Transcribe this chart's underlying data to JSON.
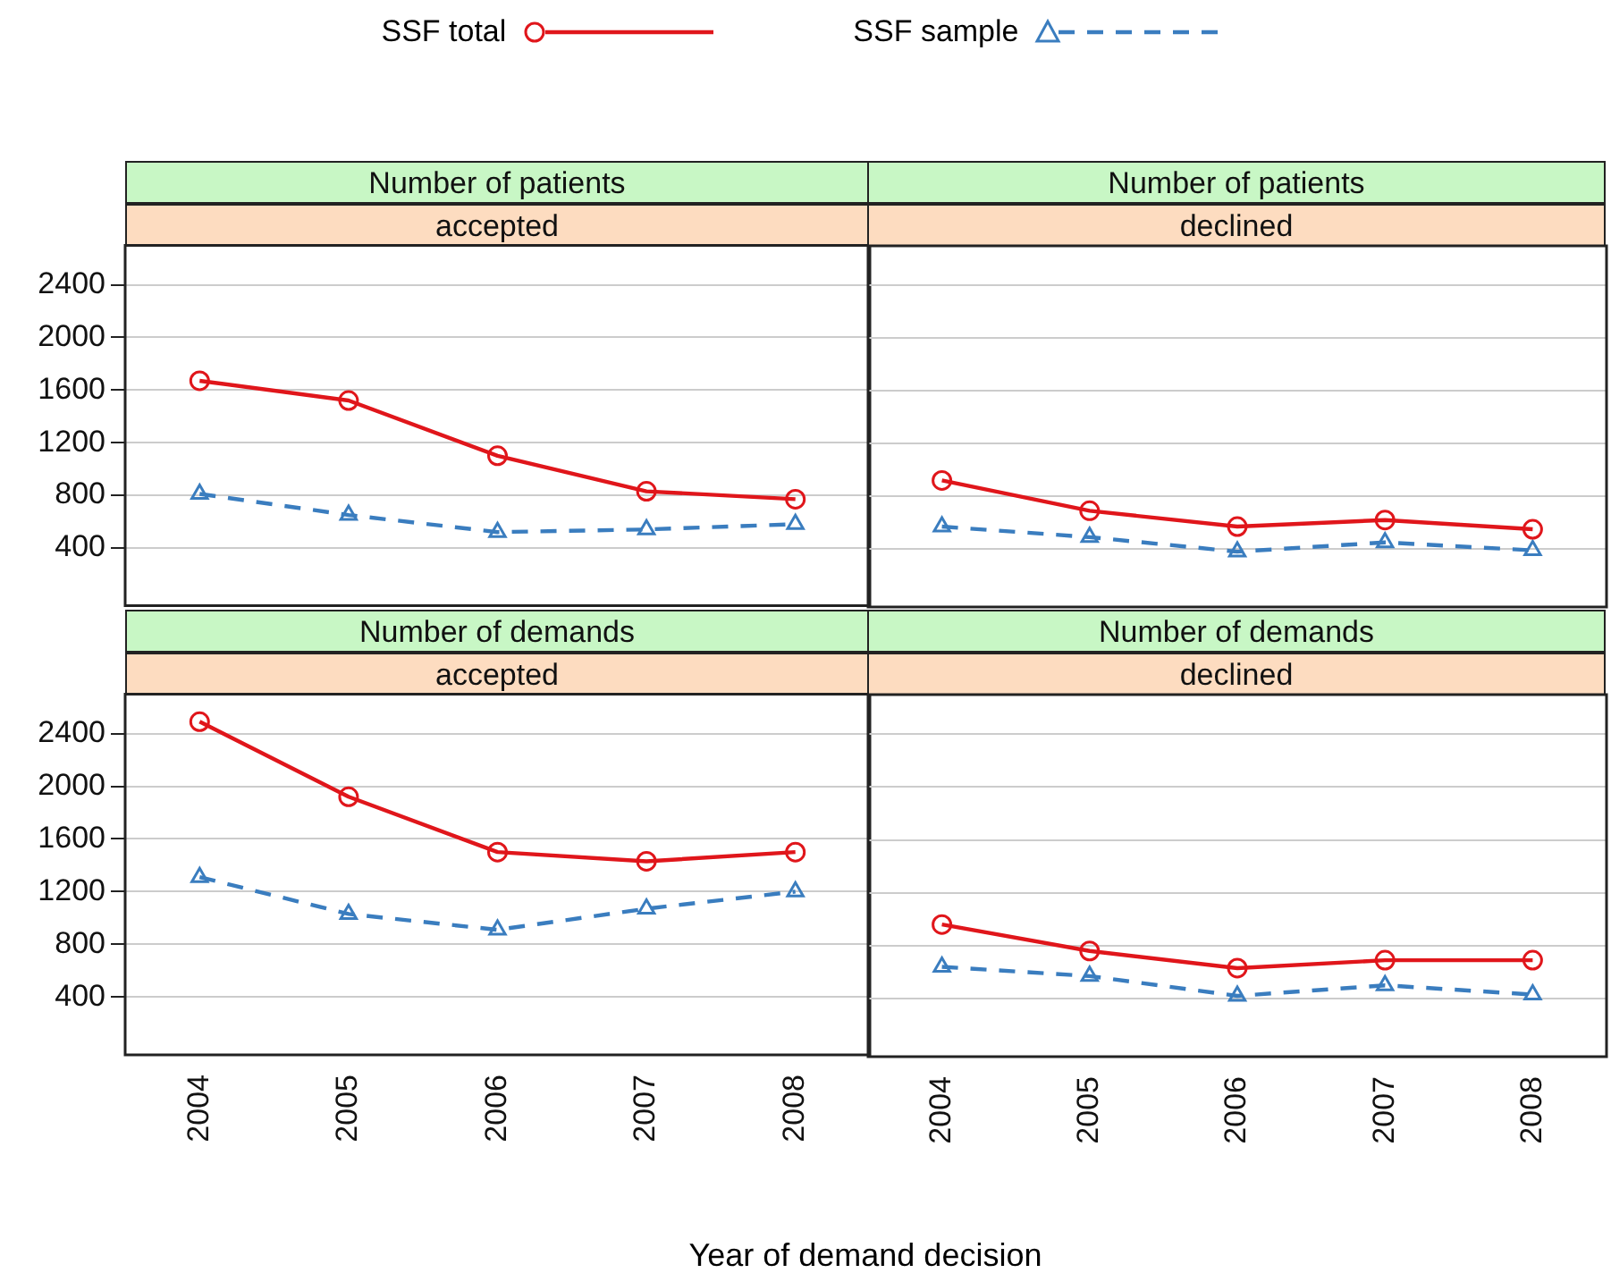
{
  "chart_data": [
    {
      "type": "line",
      "title": "Number of patients",
      "subtitle": "accepted",
      "categories": [
        "2004",
        "2005",
        "2006",
        "2007",
        "2008"
      ],
      "series": [
        {
          "name": "SSF total",
          "color": "#e0161b",
          "values": [
            1670,
            1520,
            1100,
            830,
            770
          ],
          "marker": "circle",
          "line_style": "solid"
        },
        {
          "name": "SSF sample",
          "color": "#3a7dbf",
          "values": [
            810,
            650,
            520,
            540,
            580
          ],
          "marker": "triangle",
          "line_style": "dashed"
        }
      ],
      "ylim": [
        -40,
        2700
      ],
      "yticks": [
        400,
        800,
        1200,
        1600,
        2000,
        2400
      ],
      "grid": "y",
      "legend": "top",
      "tick_labels": "y"
    },
    {
      "type": "line",
      "title": "Number of patients",
      "subtitle": "declined",
      "categories": [
        "2004",
        "2005",
        "2006",
        "2007",
        "2008"
      ],
      "series": [
        {
          "color": "#e0161b",
          "values": [
            920,
            690,
            570,
            620,
            550
          ],
          "marker": "circle",
          "line_style": "solid"
        },
        {
          "color": "#3a7dbf",
          "values": [
            570,
            490,
            380,
            450,
            390
          ],
          "marker": "triangle",
          "line_style": "dashed"
        }
      ],
      "ylim": [
        -40,
        2700
      ],
      "yticks": [
        400,
        800,
        1200,
        1600,
        2000,
        2400
      ],
      "grid": "y",
      "tick_labels": false
    },
    {
      "type": "line",
      "title": "Number of demands",
      "subtitle": "accepted",
      "categories": [
        "2004",
        "2005",
        "2006",
        "2007",
        "2008"
      ],
      "series": [
        {
          "color": "#e0161b",
          "values": [
            2490,
            1920,
            1500,
            1430,
            1500
          ],
          "marker": "circle",
          "line_style": "solid"
        },
        {
          "color": "#3a7dbf",
          "values": [
            1310,
            1030,
            910,
            1070,
            1200
          ],
          "marker": "triangle",
          "line_style": "dashed"
        }
      ],
      "ylim": [
        -40,
        2700
      ],
      "yticks": [
        400,
        800,
        1200,
        1600,
        2000,
        2400
      ],
      "grid": "y",
      "xlabel": "Year of demand decision"
    },
    {
      "type": "line",
      "title": "Number of demands",
      "subtitle": "declined",
      "categories": [
        "2004",
        "2005",
        "2006",
        "2007",
        "2008"
      ],
      "series": [
        {
          "color": "#e0161b",
          "values": [
            960,
            760,
            630,
            690,
            690
          ],
          "marker": "circle",
          "line_style": "solid"
        },
        {
          "color": "#3a7dbf",
          "values": [
            640,
            570,
            420,
            500,
            430
          ],
          "marker": "triangle",
          "line_style": "dashed"
        }
      ],
      "ylim": [
        -40,
        2700
      ],
      "yticks": [
        400,
        800,
        1200,
        1600,
        2000,
        2400
      ],
      "grid": "y",
      "tick_labels": "x"
    }
  ]
}
